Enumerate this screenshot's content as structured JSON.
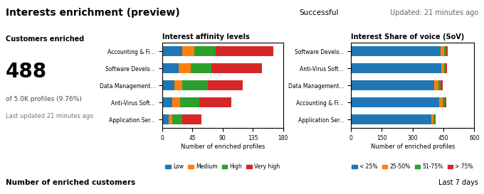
{
  "chart_data": [
    {
      "type": "bar",
      "orientation": "horizontal",
      "stacked": true,
      "title": "Interest affinity levels",
      "categories": [
        "Accounting & Fi...",
        "Software Develo...",
        "Data Management...",
        "Anti-Virus Soft...",
        "Application Ser..."
      ],
      "series": [
        {
          "name": "Low",
          "values": [
            30,
            25,
            18,
            15,
            10
          ]
        },
        {
          "name": "Medium",
          "values": [
            18,
            18,
            12,
            12,
            5
          ]
        },
        {
          "name": "High",
          "values": [
            32,
            30,
            38,
            28,
            15
          ]
        },
        {
          "name": "Very high",
          "values": [
            85,
            75,
            52,
            48,
            28
          ]
        }
      ],
      "xlabel": "Number of enriched profiles",
      "xlim": [
        0,
        180
      ],
      "xticks": [
        0,
        45,
        90,
        135,
        180
      ],
      "legend": "upper center",
      "annotations": [
        "Interests enrichment (preview)",
        "Successful",
        "Updated: 21 minutes ago",
        "Customers enriched",
        "488",
        "of 5.0K profiles (9.76%)",
        "Last updated 21 minutes ago",
        "Number of enriched customers",
        "Last 7 days"
      ]
    },
    {
      "type": "bar",
      "orientation": "horizontal",
      "stacked": true,
      "title": "Interest Share of voice (SoV)",
      "categories": [
        "Software Develo...",
        "Anti-Virus Soft...",
        "Data Management...",
        "Accounting & Fi...",
        "Application Ser..."
      ],
      "series": [
        {
          "name": "< 25%",
          "values": [
            435,
            440,
            405,
            430,
            390
          ]
        },
        {
          "name": "25-50%",
          "values": [
            18,
            14,
            22,
            18,
            12
          ]
        },
        {
          "name": "51-75%",
          "values": [
            9,
            7,
            10,
            9,
            6
          ]
        },
        {
          "name": "> 75%",
          "values": [
            8,
            6,
            8,
            8,
            5
          ]
        }
      ],
      "xlabel": "Number of enriched profiles",
      "xlim": [
        0,
        600
      ],
      "xticks": [
        0,
        150,
        300,
        450,
        600
      ],
      "legend": "upper center"
    }
  ]
}
